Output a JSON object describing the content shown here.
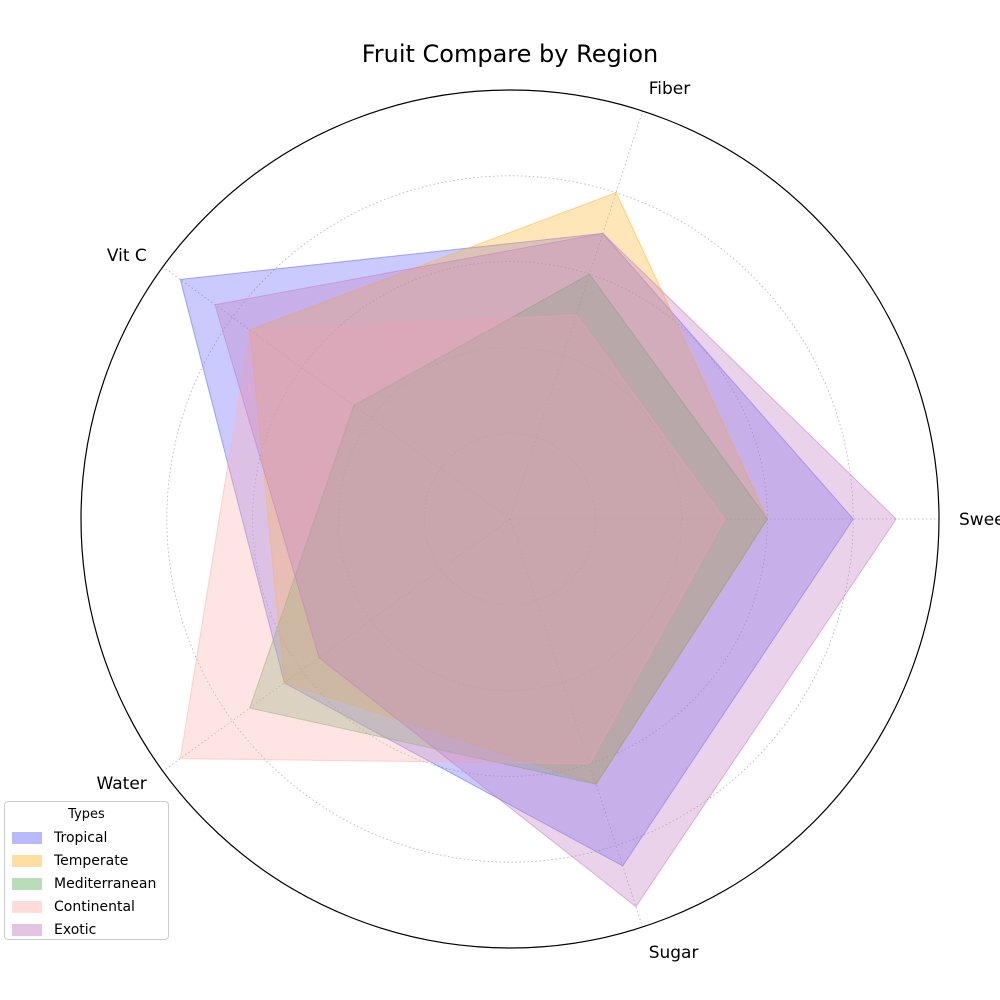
{
  "chart_data": {
    "type": "radar",
    "title": "Fruit Compare by Region",
    "axes": [
      "Sweet",
      "Fiber",
      "Vit C",
      "Water",
      "Sugar"
    ],
    "rmax": 100,
    "grid_rings": [
      20,
      40,
      60,
      80
    ],
    "grid": true,
    "legend_title": "Types",
    "legend_position": "lower-left",
    "series": [
      {
        "name": "Tropical",
        "values": [
          80,
          70,
          95,
          65,
          85
        ],
        "color": "#6666ff"
      },
      {
        "name": "Temperate",
        "values": [
          60,
          80,
          75,
          65,
          65
        ],
        "color": "#ffb733"
      },
      {
        "name": "Mediterranean",
        "values": [
          60,
          60,
          45,
          75,
          65
        ],
        "color": "#66b266"
      },
      {
        "name": "Continental",
        "values": [
          50,
          50,
          75,
          95,
          60
        ],
        "color": "#ffb2b2"
      },
      {
        "name": "Exotic",
        "values": [
          90,
          70,
          85,
          55,
          95
        ],
        "color": "#c280c2"
      }
    ]
  }
}
